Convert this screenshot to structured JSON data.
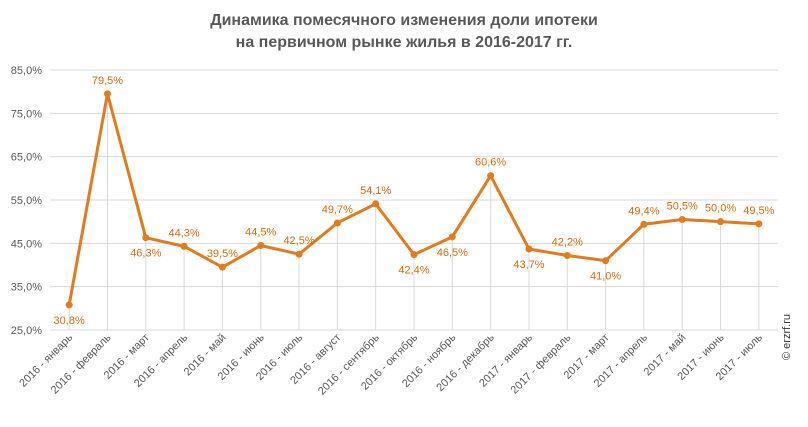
{
  "title": {
    "line1": "Динамика помесячного изменения доли ипотеки",
    "line2": "на первичном рынке жилья в 2016-2017 гг."
  },
  "watermark": "© erzrf.ru",
  "colors": {
    "series": "#E07B1F",
    "label": "#D66A10",
    "axis_text": "#595959",
    "grid": "#D9D9D9"
  },
  "chart_data": {
    "type": "line",
    "categories": [
      "2016 - январь",
      "2016 - февраль",
      "2016 - март",
      "2016 - апрель",
      "2016 - май",
      "2016 - июнь",
      "2016 - июль",
      "2016 - август",
      "2016 - сентябрь",
      "2016 - октябрь",
      "2016 - ноябрь",
      "2016 - декабрь",
      "2017 - январь",
      "2017 - февраль",
      "2017 - март",
      "2017 - апрель",
      "2017 - май",
      "2017 - июнь",
      "2017 - июль"
    ],
    "values": [
      30.8,
      79.5,
      46.3,
      44.3,
      39.5,
      44.5,
      42.5,
      49.7,
      54.1,
      42.4,
      46.5,
      60.6,
      43.7,
      42.2,
      41.0,
      49.4,
      50.5,
      50.0,
      49.5
    ],
    "data_labels": [
      "30,8%",
      "79,5%",
      "46,3%",
      "44,3%",
      "39,5%",
      "44,5%",
      "42,5%",
      "49,7%",
      "54,1%",
      "42,4%",
      "46,5%",
      "60,6%",
      "43,7%",
      "42,2%",
      "41,0%",
      "49,4%",
      "50,5%",
      "50,0%",
      "49,5%"
    ],
    "label_positions": [
      "below",
      "above",
      "below",
      "above",
      "above",
      "above",
      "above",
      "above",
      "above",
      "below",
      "below",
      "above",
      "below",
      "above",
      "below",
      "above",
      "above",
      "above",
      "above"
    ],
    "ylim": [
      25,
      85
    ],
    "yticks": [
      25,
      35,
      45,
      55,
      65,
      75,
      85
    ],
    "ytick_labels": [
      "25,0%",
      "35,0%",
      "45,0%",
      "55,0%",
      "65,0%",
      "75,0%",
      "85,0%"
    ],
    "grid": true,
    "legend": "none"
  }
}
